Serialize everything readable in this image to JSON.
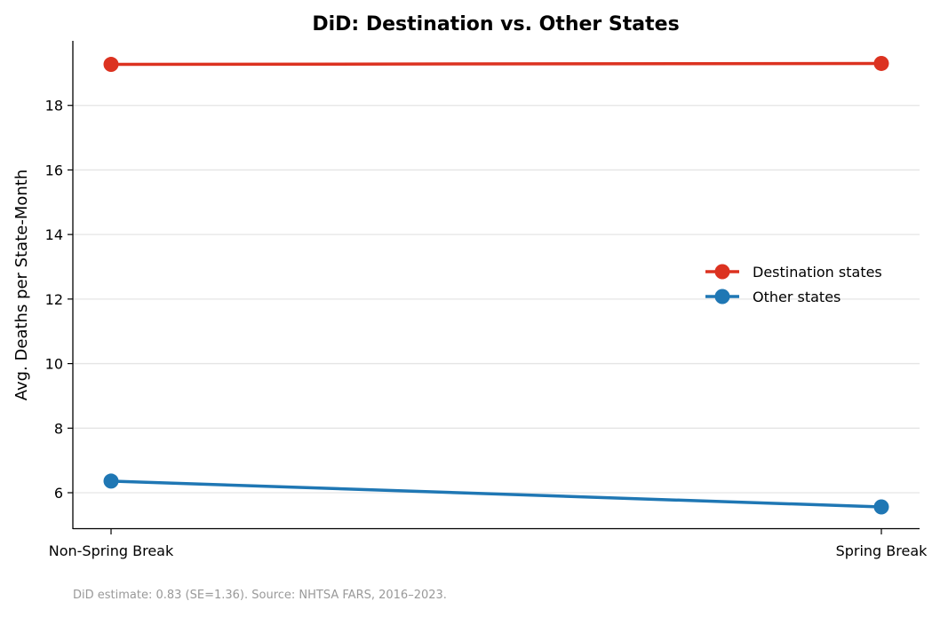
{
  "chart_data": {
    "type": "line",
    "title": "DiD: Destination vs. Other States",
    "xlabel": "",
    "ylabel": "Avg. Deaths per State-Month",
    "categories": [
      "Non-Spring Break",
      "Spring Break"
    ],
    "ylim": [
      4.9,
      20.0
    ],
    "yticks": [
      6,
      8,
      10,
      12,
      14,
      16,
      18
    ],
    "grid": "y",
    "legend_position": "center-right",
    "series": [
      {
        "name": "Destination states",
        "values": [
          19.27,
          19.3
        ],
        "color": "#dc3220"
      },
      {
        "name": "Other states",
        "values": [
          6.36,
          5.56
        ],
        "color": "#1f77b4"
      }
    ],
    "footnote": "DiD estimate: 0.83 (SE=1.36). Source: NHTSA FARS, 2016–2023."
  }
}
